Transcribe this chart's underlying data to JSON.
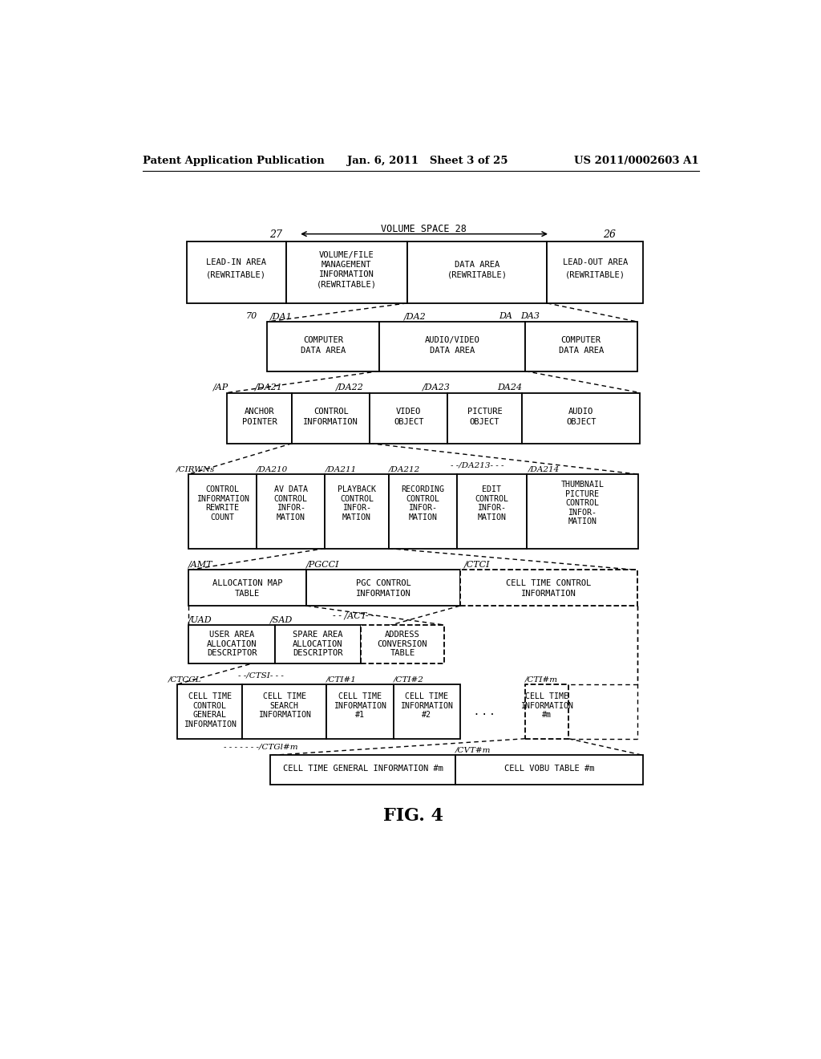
{
  "header_left": "Patent Application Publication",
  "header_mid": "Jan. 6, 2011   Sheet 3 of 25",
  "header_right": "US 2011/0002603 A1",
  "figure_label": "FIG. 4",
  "bg_color": "#ffffff"
}
